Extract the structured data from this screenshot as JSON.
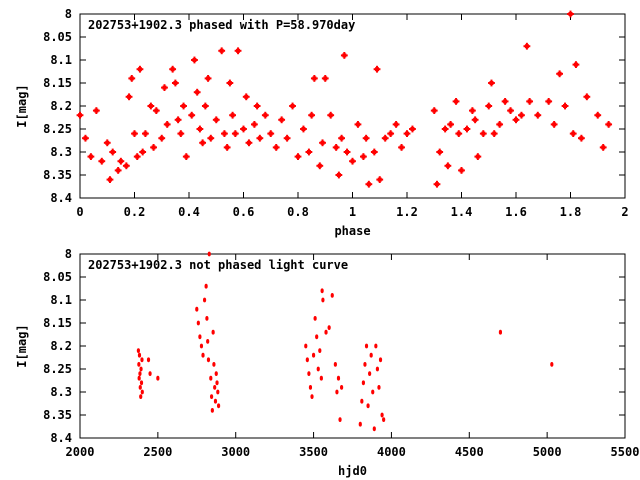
{
  "chart_data": [
    {
      "type": "scatter",
      "title": "202753+1902.3 phased with P=58.970day",
      "xlabel": "phase",
      "ylabel": "I[mag]",
      "xlim": [
        0,
        2
      ],
      "ylim": [
        8.4,
        8.0
      ],
      "y_inverted": true,
      "xticks": [
        "0",
        "0.2",
        "0.4",
        "0.6",
        "0.8",
        "1",
        "1.2",
        "1.4",
        "1.6",
        "1.8",
        "2"
      ],
      "yticks": [
        "8",
        "8.05",
        "8.1",
        "8.15",
        "8.2",
        "8.25",
        "8.3",
        "8.35",
        "8.4"
      ],
      "grid": false,
      "marker_color": "#ff0000",
      "series": [
        {
          "x": [
            0.0,
            0.02,
            0.04,
            0.06,
            0.08,
            0.1,
            0.11,
            0.12,
            0.14,
            0.15,
            0.17,
            0.18,
            0.19,
            0.2,
            0.21,
            0.22,
            0.23,
            0.24,
            0.26,
            0.27,
            0.28,
            0.3,
            0.31,
            0.32,
            0.34,
            0.35,
            0.36,
            0.37,
            0.38,
            0.39,
            0.41,
            0.42,
            0.43,
            0.44,
            0.45,
            0.46,
            0.47,
            0.48,
            0.5,
            0.52,
            0.53,
            0.54,
            0.55,
            0.56,
            0.57,
            0.58,
            0.6,
            0.61,
            0.62,
            0.64,
            0.65,
            0.66,
            0.68,
            0.7,
            0.72,
            0.74,
            0.76,
            0.78,
            0.8,
            0.82,
            0.84,
            0.85,
            0.86,
            0.88,
            0.89,
            0.9,
            0.92,
            0.94,
            0.95,
            0.96,
            0.97,
            0.98,
            1.0,
            1.02,
            1.04,
            1.05,
            1.06,
            1.08,
            1.09,
            1.1,
            1.12,
            1.14,
            1.16,
            1.18,
            1.2,
            1.22,
            1.3,
            1.31,
            1.32,
            1.34,
            1.35,
            1.36,
            1.38,
            1.39,
            1.4,
            1.42,
            1.44,
            1.45,
            1.46,
            1.48,
            1.5,
            1.51,
            1.52,
            1.54,
            1.56,
            1.58,
            1.6,
            1.62,
            1.64,
            1.65,
            1.68,
            1.72,
            1.74,
            1.76,
            1.78,
            1.8,
            1.81,
            1.82,
            1.84,
            1.86,
            1.9,
            1.92,
            1.94
          ],
          "y": [
            8.22,
            8.27,
            8.31,
            8.21,
            8.32,
            8.28,
            8.36,
            8.3,
            8.34,
            8.32,
            8.33,
            8.18,
            8.14,
            8.26,
            8.31,
            8.12,
            8.3,
            8.26,
            8.2,
            8.29,
            8.21,
            8.27,
            8.16,
            8.24,
            8.12,
            8.15,
            8.23,
            8.26,
            8.2,
            8.31,
            8.22,
            8.1,
            8.17,
            8.25,
            8.28,
            8.2,
            8.14,
            8.27,
            8.23,
            8.08,
            8.26,
            8.29,
            8.15,
            8.22,
            8.26,
            8.08,
            8.25,
            8.18,
            8.28,
            8.24,
            8.2,
            8.27,
            8.22,
            8.26,
            8.29,
            8.23,
            8.27,
            8.2,
            8.31,
            8.25,
            8.3,
            8.22,
            8.14,
            8.33,
            8.28,
            8.14,
            8.22,
            8.29,
            8.35,
            8.27,
            8.09,
            8.3,
            8.32,
            8.24,
            8.31,
            8.27,
            8.37,
            8.3,
            8.12,
            8.36,
            8.27,
            8.26,
            8.24,
            8.29,
            8.26,
            8.25,
            8.21,
            8.37,
            8.3,
            8.25,
            8.33,
            8.24,
            8.19,
            8.26,
            8.34,
            8.25,
            8.21,
            8.23,
            8.31,
            8.26,
            8.2,
            8.15,
            8.26,
            8.24,
            8.19,
            8.21,
            8.23,
            8.22,
            8.07,
            8.19,
            8.22,
            8.19,
            8.24,
            8.13,
            8.2,
            8.0,
            8.26,
            8.11,
            8.27,
            8.18,
            8.22,
            8.29,
            8.24
          ]
        }
      ]
    },
    {
      "type": "scatter",
      "title": "202753+1902.3 not phased light curve",
      "xlabel": "hjd0",
      "ylabel": "I[mag]",
      "xlim": [
        2000,
        5500
      ],
      "ylim": [
        8.4,
        8.0
      ],
      "y_inverted": true,
      "xticks": [
        "2000",
        "2500",
        "3000",
        "3500",
        "4000",
        "4500",
        "5000",
        "5500"
      ],
      "yticks": [
        "8",
        "8.05",
        "8.1",
        "8.15",
        "8.2",
        "8.25",
        "8.3",
        "8.35",
        "8.4"
      ],
      "grid": false,
      "marker_color": "#ff0000",
      "series": [
        {
          "x": [
            2375,
            2378,
            2380,
            2382,
            2385,
            2387,
            2390,
            2392,
            2395,
            2398,
            2400,
            2440,
            2450,
            2500,
            2750,
            2760,
            2770,
            2780,
            2790,
            2800,
            2810,
            2815,
            2820,
            2825,
            2830,
            2840,
            2845,
            2850,
            2855,
            2860,
            2865,
            2870,
            2875,
            2880,
            2885,
            2890,
            3450,
            3460,
            3470,
            3480,
            3490,
            3500,
            3510,
            3520,
            3530,
            3540,
            3550,
            3555,
            3560,
            3580,
            3600,
            3620,
            3640,
            3650,
            3660,
            3670,
            3680,
            3800,
            3810,
            3820,
            3830,
            3840,
            3850,
            3860,
            3870,
            3880,
            3890,
            3900,
            3910,
            3920,
            3930,
            3940,
            3950,
            4700,
            5030
          ],
          "y": [
            8.21,
            8.24,
            8.27,
            8.22,
            8.26,
            8.29,
            8.31,
            8.25,
            8.28,
            8.23,
            8.3,
            8.23,
            8.26,
            8.27,
            8.12,
            8.15,
            8.18,
            8.2,
            8.22,
            8.1,
            8.07,
            8.14,
            8.19,
            8.23,
            8.0,
            8.27,
            8.31,
            8.34,
            8.17,
            8.24,
            8.29,
            8.32,
            8.26,
            8.28,
            8.3,
            8.33,
            8.2,
            8.23,
            8.26,
            8.29,
            8.31,
            8.22,
            8.14,
            8.18,
            8.25,
            8.21,
            8.27,
            8.08,
            8.1,
            8.17,
            8.16,
            8.09,
            8.24,
            8.3,
            8.27,
            8.36,
            8.29,
            8.37,
            8.32,
            8.28,
            8.24,
            8.2,
            8.33,
            8.26,
            8.22,
            8.3,
            8.38,
            8.2,
            8.25,
            8.29,
            8.23,
            8.35,
            8.36,
            8.17,
            8.24
          ]
        }
      ]
    }
  ]
}
